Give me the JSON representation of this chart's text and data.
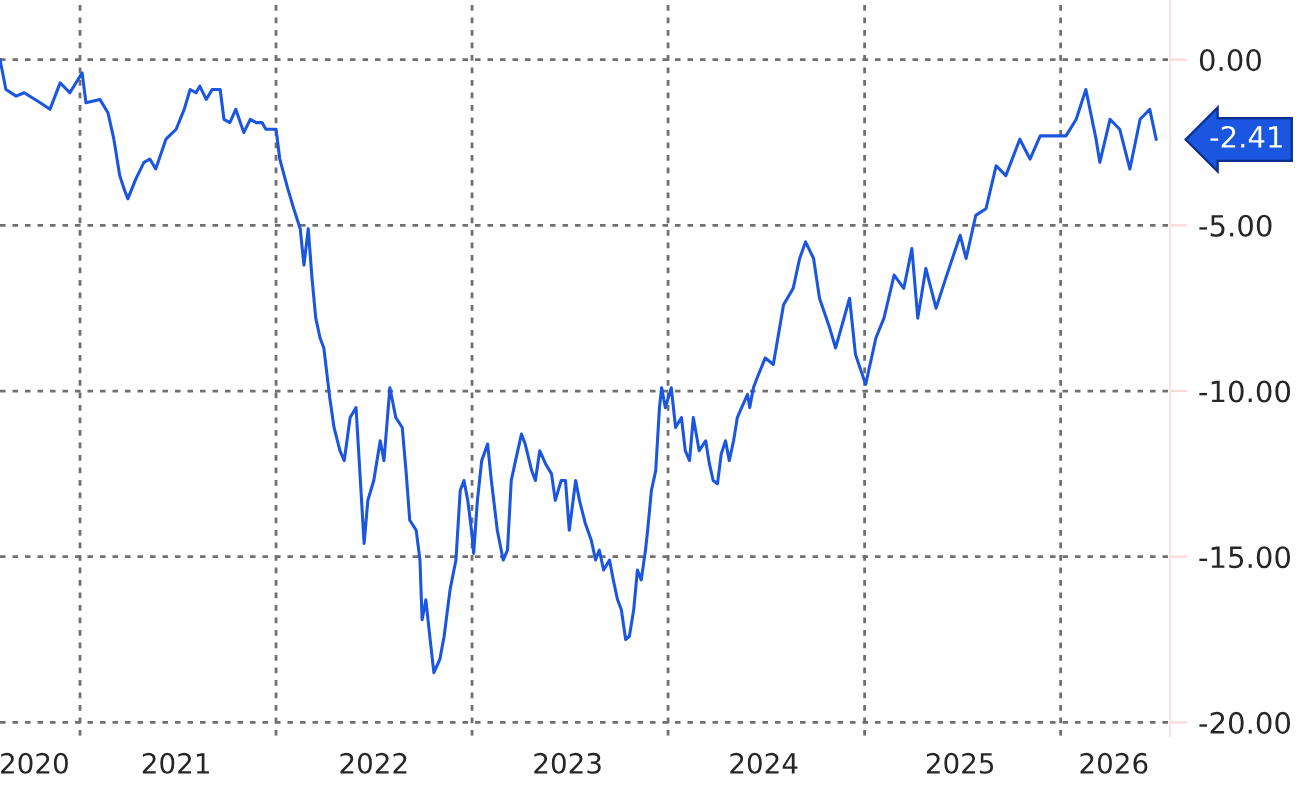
{
  "chart_data": {
    "type": "line",
    "x": [
      "2020-08-05",
      "2020-08-16",
      "2020-09-04",
      "2020-09-19",
      "2020-10-19",
      "2020-11-06",
      "2020-11-25",
      "2020-12-13",
      "2021-01-05",
      "2021-01-12",
      "2021-02-07",
      "2021-02-22",
      "2021-03-05",
      "2021-03-16",
      "2021-03-24",
      "2021-03-31",
      "2021-04-15",
      "2021-04-30",
      "2021-05-11",
      "2021-05-22",
      "2021-06-10",
      "2021-06-29",
      "2021-07-14",
      "2021-07-25",
      "2021-08-05",
      "2021-08-12",
      "2021-08-24",
      "2021-09-04",
      "2021-09-19",
      "2021-09-26",
      "2021-10-07",
      "2021-10-18",
      "2021-11-02",
      "2021-11-14",
      "2021-11-25",
      "2021-12-06",
      "2021-12-13",
      "2022-01-01",
      "2022-01-08",
      "2022-01-23",
      "2022-02-03",
      "2022-02-15",
      "2022-02-22",
      "2022-03-02",
      "2022-03-09",
      "2022-03-16",
      "2022-03-24",
      "2022-03-31",
      "2022-04-11",
      "2022-04-19",
      "2022-04-30",
      "2022-05-08",
      "2022-05-19",
      "2022-05-30",
      "2022-06-14",
      "2022-06-21",
      "2022-07-02",
      "2022-07-14",
      "2022-07-21",
      "2022-08-01",
      "2022-08-12",
      "2022-08-24",
      "2022-08-31",
      "2022-09-07",
      "2022-09-19",
      "2022-09-26",
      "2022-09-30",
      "2022-10-07",
      "2022-10-15",
      "2022-10-22",
      "2022-11-02",
      "2022-11-10",
      "2022-11-21",
      "2022-12-02",
      "2022-12-10",
      "2022-12-17",
      "2022-12-24",
      "2022-12-31",
      "2023-01-04",
      "2023-01-11",
      "2023-01-19",
      "2023-01-30",
      "2023-02-06",
      "2023-02-17",
      "2023-02-28",
      "2023-03-08",
      "2023-03-15",
      "2023-03-23",
      "2023-04-03",
      "2023-04-10",
      "2023-04-22",
      "2023-04-29",
      "2023-05-07",
      "2023-05-18",
      "2023-05-29",
      "2023-06-05",
      "2023-06-16",
      "2023-06-24",
      "2023-07-01",
      "2023-07-13",
      "2023-07-20",
      "2023-07-31",
      "2023-08-11",
      "2023-08-19",
      "2023-08-26",
      "2023-09-03",
      "2023-09-14",
      "2023-09-21",
      "2023-09-29",
      "2023-10-06",
      "2023-10-14",
      "2023-10-21",
      "2023-10-29",
      "2023-11-05",
      "2023-11-12",
      "2023-11-20",
      "2023-11-24",
      "2023-12-01",
      "2023-12-09",
      "2023-12-16",
      "2023-12-20",
      "2023-12-27",
      "2024-01-07",
      "2024-01-15",
      "2024-01-26",
      "2024-02-02",
      "2024-02-10",
      "2024-02-17",
      "2024-02-28",
      "2024-03-11",
      "2024-03-18",
      "2024-03-25",
      "2024-04-02",
      "2024-04-09",
      "2024-04-17",
      "2024-04-24",
      "2024-05-02",
      "2024-05-09",
      "2024-05-17",
      "2024-05-28",
      "2024-06-01",
      "2024-06-08",
      "2024-06-15",
      "2024-06-30",
      "2024-07-15",
      "2024-08-03",
      "2024-08-21",
      "2024-09-02",
      "2024-09-13",
      "2024-09-28",
      "2024-10-09",
      "2024-10-28",
      "2024-11-08",
      "2024-12-04",
      "2024-12-15",
      "2025-01-03",
      "2025-01-22",
      "2025-02-06",
      "2025-02-25",
      "2025-03-15",
      "2025-03-30",
      "2025-04-10",
      "2025-04-25",
      "2025-05-14",
      "2025-06-01",
      "2025-06-28",
      "2025-07-09",
      "2025-07-27",
      "2025-08-15",
      "2025-09-03",
      "2025-09-21",
      "2025-10-17",
      "2025-11-05",
      "2025-11-24",
      "2025-12-20",
      "2026-01-11",
      "2026-01-30",
      "2026-02-17",
      "2026-03-08",
      "2026-03-15",
      "2026-04-03",
      "2026-04-21",
      "2026-05-10",
      "2026-05-29",
      "2026-06-16",
      "2026-06-28"
    ],
    "series": [
      {
        "color": "#1a56e0",
        "values": [
          0.0,
          -0.9,
          -1.1,
          -1.0,
          -1.3,
          -1.5,
          -0.7,
          -1.0,
          -0.4,
          -1.3,
          -1.2,
          -1.6,
          -2.4,
          -3.5,
          -3.9,
          -4.2,
          -3.6,
          -3.1,
          -3.0,
          -3.3,
          -2.4,
          -2.1,
          -1.5,
          -0.9,
          -1.0,
          -0.8,
          -1.2,
          -0.9,
          -0.9,
          -1.8,
          -1.9,
          -1.5,
          -2.2,
          -1.8,
          -1.9,
          -1.9,
          -2.1,
          -2.1,
          -3.0,
          -3.9,
          -4.5,
          -5.1,
          -6.2,
          -5.1,
          -6.6,
          -7.8,
          -8.4,
          -8.7,
          -10.2,
          -11.1,
          -11.8,
          -12.1,
          -10.8,
          -10.5,
          -14.6,
          -13.3,
          -12.7,
          -11.5,
          -12.1,
          -9.9,
          -10.8,
          -11.1,
          -12.4,
          -13.9,
          -14.2,
          -15.1,
          -16.9,
          -16.3,
          -17.5,
          -18.5,
          -18.1,
          -17.4,
          -16.0,
          -15.1,
          -13.0,
          -12.7,
          -13.3,
          -14.2,
          -14.9,
          -13.3,
          -12.1,
          -11.6,
          -12.7,
          -14.2,
          -15.1,
          -14.8,
          -12.7,
          -12.1,
          -11.3,
          -11.6,
          -12.4,
          -12.7,
          -11.8,
          -12.2,
          -12.5,
          -13.3,
          -12.7,
          -12.7,
          -14.2,
          -12.7,
          -13.3,
          -14.0,
          -14.5,
          -15.1,
          -14.8,
          -15.4,
          -15.1,
          -15.7,
          -16.3,
          -16.6,
          -17.5,
          -17.4,
          -16.6,
          -15.4,
          -15.7,
          -14.8,
          -14.2,
          -13.0,
          -12.4,
          -10.5,
          -9.9,
          -10.5,
          -9.9,
          -11.1,
          -10.8,
          -11.8,
          -12.1,
          -10.8,
          -11.8,
          -11.5,
          -12.2,
          -12.7,
          -12.8,
          -11.9,
          -11.5,
          -12.1,
          -11.5,
          -10.8,
          -10.5,
          -10.1,
          -10.5,
          -9.9,
          -9.6,
          -9.0,
          -9.2,
          -7.4,
          -6.9,
          -6.0,
          -5.5,
          -6.0,
          -7.2,
          -8.1,
          -8.7,
          -7.2,
          -8.9,
          -9.8,
          -8.4,
          -7.8,
          -6.5,
          -6.9,
          -5.7,
          -7.8,
          -6.3,
          -7.5,
          -6.6,
          -5.3,
          -6.0,
          -4.7,
          -4.5,
          -3.2,
          -3.5,
          -2.4,
          -3.0,
          -2.3,
          -2.3,
          -2.3,
          -1.8,
          -0.9,
          -2.4,
          -3.1,
          -1.8,
          -2.1,
          -3.3,
          -1.8,
          -1.5,
          -2.41
        ]
      }
    ],
    "annotations": [
      {
        "text": "-2.41",
        "x": "2026-06-28",
        "y": -2.41
      }
    ],
    "xlim": [
      "2020-08-05",
      "2026-07-24"
    ],
    "xticks": [
      {
        "value": "2020-10-08",
        "label": "2020"
      },
      {
        "value": "2021-01-01",
        "label": null
      },
      {
        "value": "2021-06-29",
        "label": "2021"
      },
      {
        "value": "2022-01-01",
        "label": null
      },
      {
        "value": "2022-07-02",
        "label": "2022"
      },
      {
        "value": "2023-01-01",
        "label": null
      },
      {
        "value": "2023-06-28",
        "label": "2023"
      },
      {
        "value": "2024-01-01",
        "label": null
      },
      {
        "value": "2024-06-27",
        "label": "2024"
      },
      {
        "value": "2025-01-01",
        "label": null
      },
      {
        "value": "2025-06-28",
        "label": "2025"
      },
      {
        "value": "2026-01-01",
        "label": null
      },
      {
        "value": "2026-04-10",
        "label": "2026"
      }
    ],
    "ylim": [
      -20.4,
      1.8
    ],
    "yticks": [
      {
        "value": 0,
        "label": "0.00"
      },
      {
        "value": -5,
        "label": "-5.00"
      },
      {
        "value": -10,
        "label": "-10.00"
      },
      {
        "value": -15,
        "label": "-15.00"
      },
      {
        "value": -20,
        "label": "-20.00"
      }
    ],
    "grid": true,
    "line_style": "solid",
    "marker": "none"
  }
}
